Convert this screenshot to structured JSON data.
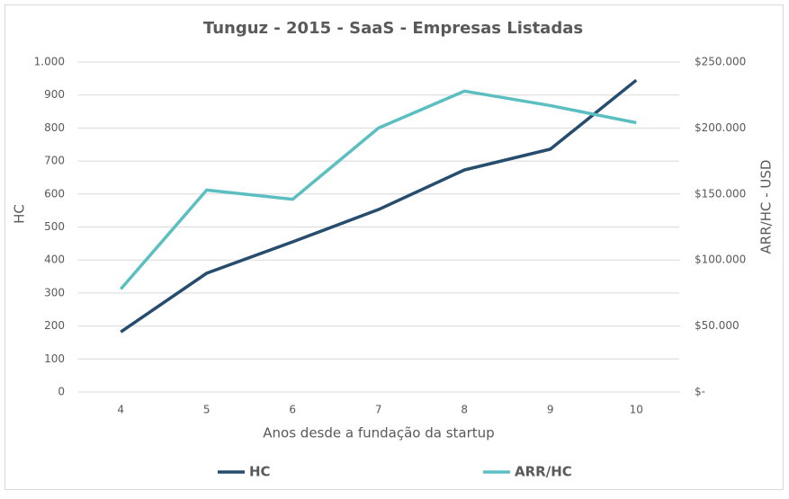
{
  "chart_data": {
    "type": "line",
    "title": "Tunguz - 2015 - SaaS - Empresas Listadas",
    "x_label": "Anos desde a fundação da startup",
    "y_label": "HC",
    "y2_label": "ARR/HC - USD",
    "categories": [
      4,
      5,
      6,
      7,
      8,
      9,
      10
    ],
    "series": [
      {
        "name": "HC",
        "color": "#264d6e",
        "values": [
          182,
          360,
          455,
          553,
          673,
          736,
          945
        ]
      },
      {
        "name": "ARR/HC",
        "color": "#5bbfc2",
        "axis": "y2",
        "values": [
          78000,
          153000,
          146000,
          200000,
          228000,
          217000,
          204000
        ]
      }
    ],
    "ylim": [
      0,
      1000
    ],
    "yticks": [
      0,
      100,
      200,
      300,
      400,
      500,
      600,
      700,
      800,
      900,
      {
        "value": 1000,
        "label": "1.000"
      }
    ],
    "y2lim": [
      0,
      250000
    ],
    "y2ticks": [
      {
        "value": 0,
        "label": "$-"
      },
      {
        "value": 50000,
        "label": "$50.000"
      },
      {
        "value": 100000,
        "label": "$100.000"
      },
      {
        "value": 150000,
        "label": "$150.000"
      },
      {
        "value": 200000,
        "label": "$200.000"
      },
      {
        "value": 250000,
        "label": "$250.000"
      }
    ],
    "grid": true,
    "legend": "bottom"
  }
}
